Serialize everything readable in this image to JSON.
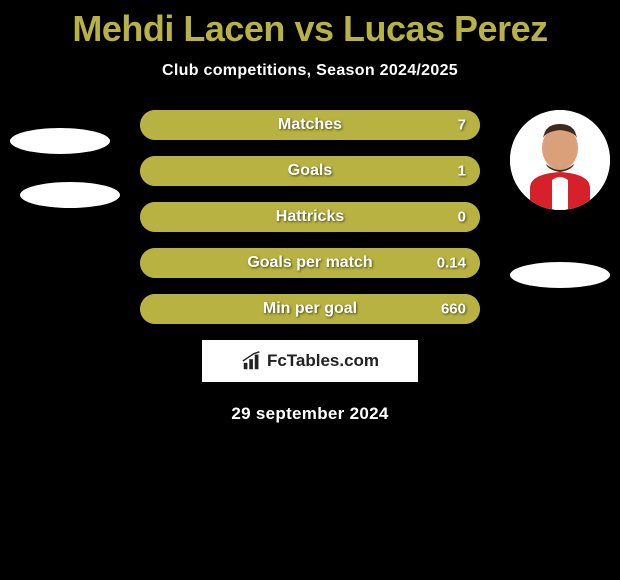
{
  "title": {
    "player1": "Mehdi Lacen",
    "vs": "vs",
    "player2": "Lucas Perez",
    "color": "#b7b241",
    "fontsize": 36
  },
  "subtitle": "Club competitions, Season 2024/2025",
  "bars": {
    "bar_bg_color": "#b7b241",
    "fill_color": "#b7b241",
    "text_color": "#ffffff",
    "height": 30,
    "rows": [
      {
        "label": "Matches",
        "value_right": "7",
        "fill_pct": 100
      },
      {
        "label": "Goals",
        "value_right": "1",
        "fill_pct": 100
      },
      {
        "label": "Hattricks",
        "value_right": "0",
        "fill_pct": 100
      },
      {
        "label": "Goals per match",
        "value_right": "0.14",
        "fill_pct": 100
      },
      {
        "label": "Min per goal",
        "value_right": "660",
        "fill_pct": 100
      }
    ]
  },
  "attribution": {
    "text": "FcTables.com",
    "icon": "bar-chart-icon",
    "bg_color": "#ffffff",
    "text_color": "#222222"
  },
  "date": "29 september 2024",
  "avatars": {
    "left_visible": false,
    "right_visible": true
  },
  "styling": {
    "background_color": "#000000",
    "shadow_color": "#ffffff"
  }
}
